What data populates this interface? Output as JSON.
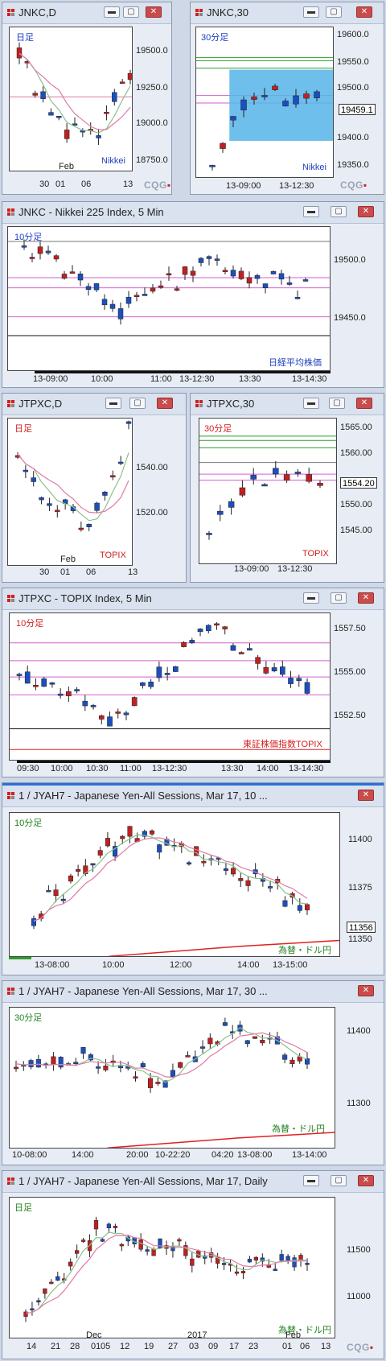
{
  "colors": {
    "up": "#1a4fbf",
    "down": "#c02020",
    "ma_green": "#8cc08c",
    "ma_pink": "#e07aa6",
    "hline_green": "#2a9d2a",
    "hline_pink": "#d35fd3",
    "selection": "#56b4e9"
  },
  "windows": [
    {
      "title": "JNKC,D",
      "period_label": "日足",
      "period_color": "#2040c0",
      "watermark": "Nikkei",
      "watermark_color": "#2040c0",
      "ylabels": [
        "19500.0",
        "19250.0",
        "19000.0",
        "18750.0"
      ],
      "xlabels": [
        "30",
        "01",
        "06",
        "13"
      ],
      "month_label": "Feb",
      "price_tag": ""
    },
    {
      "title": "JNKC,30",
      "period_label": "30分足",
      "period_color": "#2040c0",
      "watermark": "Nikkei",
      "watermark_color": "#2040c0",
      "ylabels": [
        "19600.0",
        "19550.0",
        "19500.0",
        "19400.0",
        "19350.0"
      ],
      "xlabels": [
        "13-09:00",
        "13-12:30"
      ],
      "month_label": "",
      "price_tag": "19459.1"
    },
    {
      "title": "JNKC - Nikkei 225 Index, 5 Min",
      "period_label": "10分足",
      "period_color": "#2040c0",
      "watermark": "日経平均株価",
      "watermark_color": "#2040c0",
      "ylabels": [
        "19500.0",
        "19450.0"
      ],
      "xlabels": [
        "13-09:00",
        "10:00",
        "11:00",
        "13-12:30",
        "13:30",
        "13-14:30"
      ],
      "month_label": "",
      "price_tag": ""
    },
    {
      "title": "JTPXC,D",
      "period_label": "日足",
      "period_color": "#d02020",
      "watermark": "TOPIX",
      "watermark_color": "#d02020",
      "ylabels": [
        "1540.00",
        "1520.00"
      ],
      "xlabels": [
        "30",
        "01",
        "06",
        "13"
      ],
      "month_label": "Feb",
      "price_tag": ""
    },
    {
      "title": "JTPXC,30",
      "period_label": "30分足",
      "period_color": "#d02020",
      "watermark": "TOPIX",
      "watermark_color": "#d02020",
      "ylabels": [
        "1565.00",
        "1560.00",
        "1550.00",
        "1545.00"
      ],
      "xlabels": [
        "13-09:00",
        "13-12:30"
      ],
      "month_label": "",
      "price_tag": "1554.20"
    },
    {
      "title": "JTPXC - TOPIX Index, 5 Min",
      "period_label": "10分足",
      "period_color": "#d02020",
      "watermark": "東証株価指数TOPIX",
      "watermark_color": "#d02020",
      "ylabels": [
        "1557.50",
        "1555.00",
        "1552.50"
      ],
      "xlabels": [
        "09:30",
        "10:00",
        "10:30",
        "11:00",
        "13-12:30",
        "13:30",
        "14:00",
        "13-14:30"
      ],
      "month_label": "",
      "price_tag": ""
    },
    {
      "title": "1 / JYAH7 - Japanese Yen-All Sessions, Mar 17, 10 ...",
      "period_label": "10分足",
      "period_color": "#208020",
      "watermark": "為替・ドル円",
      "watermark_color": "#208020",
      "ylabels": [
        "11400",
        "11375",
        "11350"
      ],
      "xlabels": [
        "13-08:00",
        "10:00",
        "12:00",
        "14:00",
        "13-15:00"
      ],
      "month_label": "",
      "price_tag": "11356"
    },
    {
      "title": "1 / JYAH7 - Japanese Yen-All Sessions, Mar 17, 30 ...",
      "period_label": "30分足",
      "period_color": "#208020",
      "watermark": "為替・ドル円",
      "watermark_color": "#208020",
      "ylabels": [
        "11400",
        "11300"
      ],
      "xlabels": [
        "10-08:00",
        "14:00",
        "20:00",
        "10-22:20",
        "04:20",
        "13-08:00",
        "13-14:00"
      ],
      "month_label": "",
      "price_tag": ""
    },
    {
      "title": "1 / JYAH7 - Japanese Yen-All Sessions, Mar 17, Daily",
      "period_label": "日足",
      "period_color": "#208020",
      "watermark": "為替・ドル円",
      "watermark_color": "#208020",
      "ylabels": [
        "11500",
        "11000"
      ],
      "xlabels": [
        "14",
        "21",
        "28",
        "01",
        "05",
        "12",
        "19",
        "27",
        "03",
        "09",
        "17",
        "23",
        "01",
        "06",
        "13"
      ],
      "month_label": "Dec",
      "month_label2": "2017",
      "month_label3": "Feb",
      "price_tag": ""
    }
  ],
  "cqg_logo": "CQG"
}
